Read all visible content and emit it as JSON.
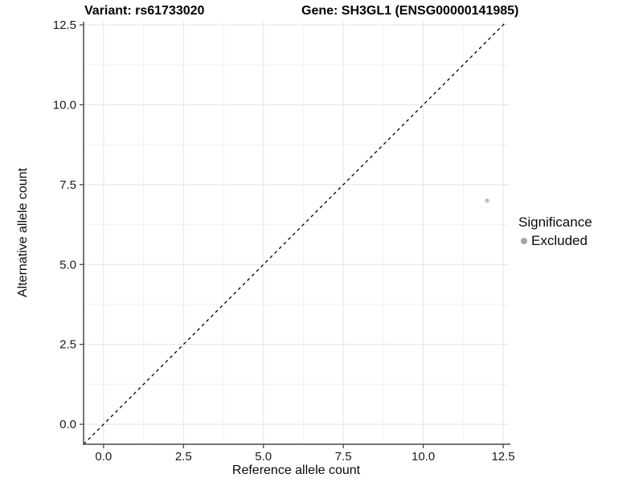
{
  "figure": {
    "title_left": "Variant: rs61733020",
    "title_right": "Gene: SH3GL1 (ENSG00000141985)"
  },
  "chart_data": {
    "type": "scatter",
    "title_left": "Variant: rs61733020",
    "title_right": "Gene: SH3GL1 (ENSG00000141985)",
    "xlabel": "Reference allele count",
    "ylabel": "Alternative allele count",
    "xlim": [
      -0.625,
      12.675
    ],
    "ylim": [
      -0.625,
      12.6
    ],
    "x_ticks": {
      "values": [
        0,
        2.5,
        5,
        7.5,
        10,
        12.5
      ],
      "labels": [
        "0.0",
        "2.5",
        "5.0",
        "7.5",
        "10.0",
        "12.5"
      ]
    },
    "y_ticks": {
      "values": [
        0,
        2.5,
        5,
        7.5,
        10,
        12.5
      ],
      "labels": [
        "0.0",
        "2.5",
        "5.0",
        "7.5",
        "10.0",
        "12.5"
      ]
    },
    "minor_breaks": [
      1.25,
      3.75,
      6.25,
      8.75,
      11.25
    ],
    "grid": "major+minor",
    "series": [
      {
        "name": "Excluded",
        "color": "#bfbfbf",
        "points": [
          {
            "x": 12,
            "y": 7
          }
        ]
      }
    ],
    "reference_line": {
      "kind": "identity y=x",
      "style": "dashed",
      "color": "#000000"
    },
    "legend": {
      "title": "Significance",
      "position": "right",
      "items": [
        {
          "label": "Excluded",
          "marker": "circle",
          "color": "#a6a6a6"
        }
      ]
    },
    "colors": {
      "background": "#ffffff",
      "grid_major": "#e4e4e4",
      "grid_minor": "#f1f1f1",
      "axis_line": "#4a4a4a",
      "tick_label": "#1a1a1a",
      "point": "#bfbfbf"
    }
  }
}
